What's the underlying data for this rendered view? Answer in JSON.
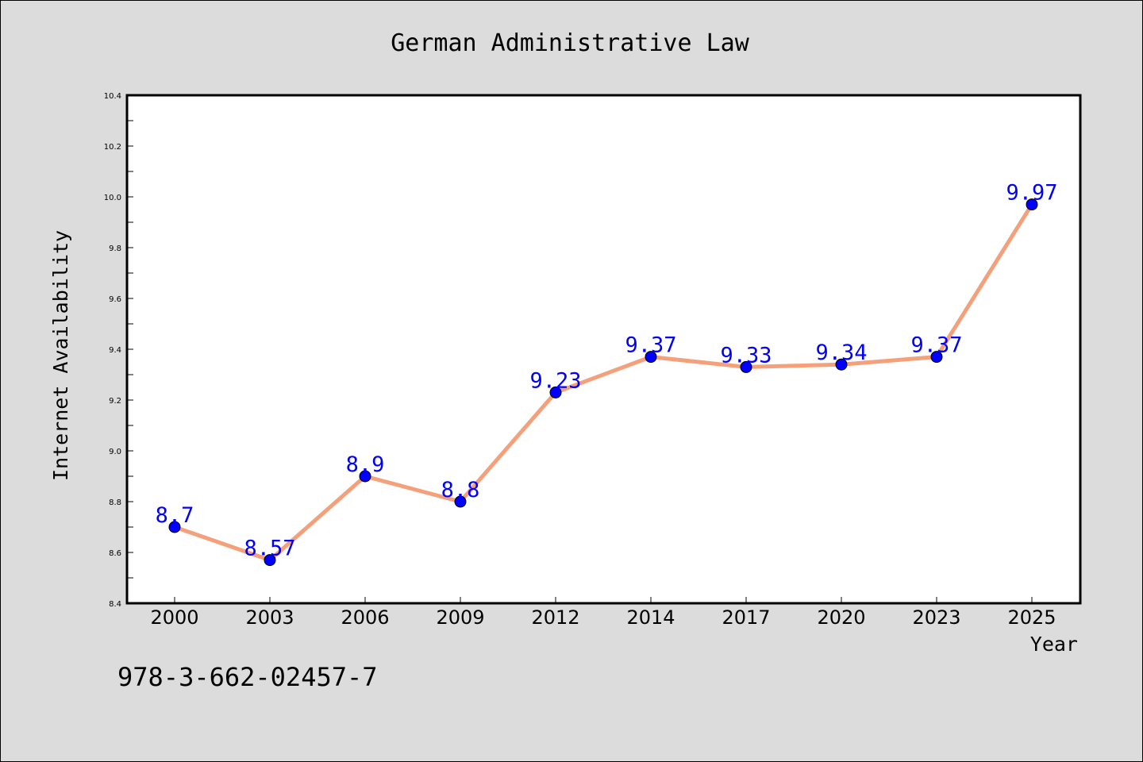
{
  "chart_data": {
    "type": "line",
    "title": "German Administrative Law",
    "xlabel": "Year",
    "ylabel": "Internet Availability",
    "categories": [
      "2000",
      "2003",
      "2006",
      "2009",
      "2012",
      "2014",
      "2017",
      "2020",
      "2023",
      "2025"
    ],
    "series": [
      {
        "values": [
          8.7,
          8.57,
          8.9,
          8.8,
          9.23,
          9.37,
          9.33,
          9.34,
          9.37,
          9.97
        ]
      }
    ],
    "data_labels": [
      "8.7",
      "8.57",
      "8.9",
      "8.8",
      "9.23",
      "9.37",
      "9.33",
      "9.34",
      "9.37",
      "9.97"
    ],
    "ylim": [
      8.4,
      10.4
    ],
    "yticks": [
      "8.4",
      "8.6",
      "8.8",
      "9.0",
      "9.2",
      "9.4",
      "9.6",
      "9.8",
      "10.0",
      "10.2",
      "10.4"
    ],
    "grid": false,
    "legend": "none",
    "line_color": "#f4a07a",
    "marker_color": "#0000ff",
    "label_color": "#0000ff"
  },
  "footer": {
    "isbn": "978-3-662-02457-7"
  }
}
